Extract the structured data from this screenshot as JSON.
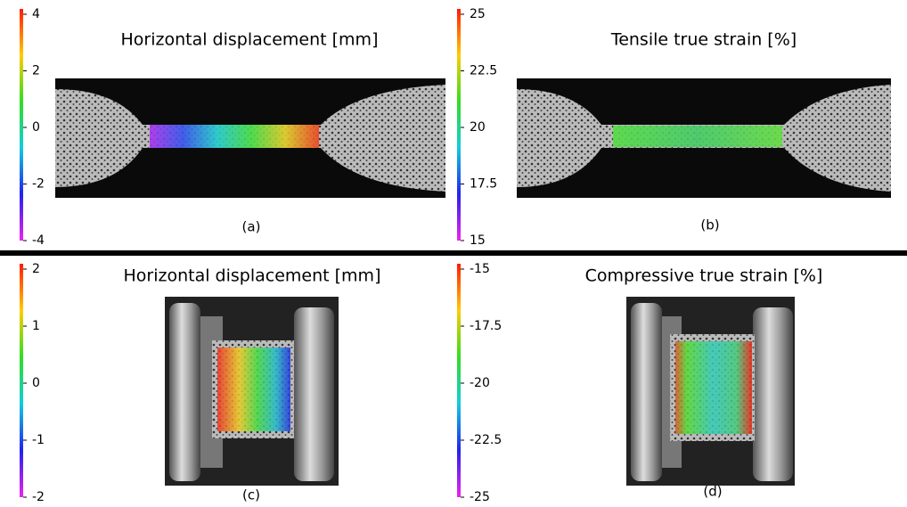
{
  "panels": [
    {
      "title": "Horizontal displacement [mm]",
      "colorbar_ticks": [
        "4",
        "2",
        "0",
        "-2",
        "-4"
      ],
      "caption": "(a)"
    },
    {
      "title": "Tensile true strain [%]",
      "colorbar_ticks": [
        "25",
        "22.5",
        "20",
        "17.5",
        "15"
      ],
      "caption": "(b)"
    },
    {
      "title": "Horizontal displacement [mm]",
      "colorbar_ticks": [
        "2",
        "1",
        "0",
        "-1",
        "-2"
      ],
      "caption": "(c)"
    },
    {
      "title": "Compressive true strain [%]",
      "colorbar_ticks": [
        "-15",
        "-17.5",
        "-20",
        "-22.5",
        "-25"
      ],
      "caption": "(d)"
    }
  ]
}
